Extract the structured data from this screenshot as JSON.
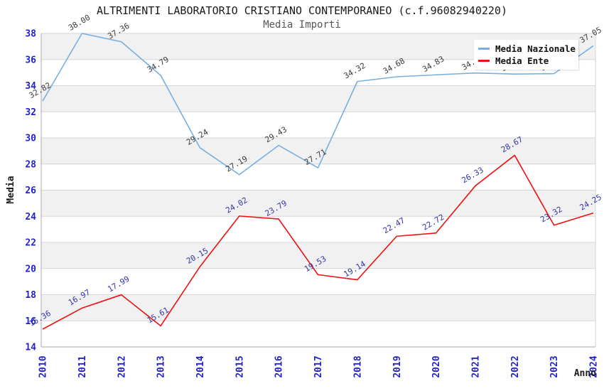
{
  "title": "ALTRIMENTI LABORATORIO CRISTIANO CONTEMPORANEO (c.f.96082940220)",
  "subtitle": "Media Importi",
  "legend": {
    "items": [
      {
        "label": "Media Nazionale",
        "color": "#79aede"
      },
      {
        "label": "Media Ente",
        "color": "#ee1111"
      }
    ]
  },
  "colors": {
    "tick_text": "#2222cc",
    "grid_line": "#d6d6d6",
    "band_fill": "#f1f1f1",
    "axis_line": "#a9a9b0",
    "axis_title_text": "#1a1a1a",
    "background": "#ffffff"
  },
  "chart_data": {
    "type": "line",
    "title": "ALTRIMENTI LABORATORIO CRISTIANO CONTEMPORANEO (c.f.96082940220)",
    "subtitle": "Media Importi",
    "xlabel": "Anno",
    "ylabel": "Media",
    "x": [
      2010,
      2011,
      2012,
      2013,
      2014,
      2015,
      2016,
      2017,
      2018,
      2019,
      2020,
      2021,
      2022,
      2023,
      2024
    ],
    "ylim": [
      14,
      38
    ],
    "ytick_step": 2,
    "grid": true,
    "banded_background": true,
    "legend_position": "top-right",
    "series": [
      {
        "name": "Media Nazionale",
        "color": "#79aede",
        "label_color": "#3c3c3c",
        "values": [
          32.82,
          38.0,
          37.36,
          34.79,
          29.24,
          27.19,
          29.43,
          27.71,
          34.32,
          34.68,
          34.83,
          34.97,
          34.89,
          34.92,
          37.05
        ],
        "point_labels": [
          "32.82",
          "38.00",
          "37.36",
          "34.79",
          "29.24",
          "27.19",
          "29.43",
          "27.71",
          "34.32",
          "34.68",
          "34.83",
          "34.97",
          "34.89",
          "34.92",
          "37.05"
        ]
      },
      {
        "name": "Media Ente",
        "color": "#ee1111",
        "label_color": "#3434a6",
        "values": [
          15.36,
          16.97,
          17.99,
          15.61,
          20.15,
          24.02,
          23.79,
          19.53,
          19.14,
          22.47,
          22.72,
          26.33,
          28.67,
          23.32,
          24.25
        ],
        "point_labels": [
          "15.36",
          "16.97",
          "17.99",
          "15.61",
          "20.15",
          "24.02",
          "23.79",
          "19.53",
          "19.14",
          "22.47",
          "22.72",
          "26.33",
          "28.67",
          "23.32",
          "24.25"
        ]
      }
    ]
  }
}
